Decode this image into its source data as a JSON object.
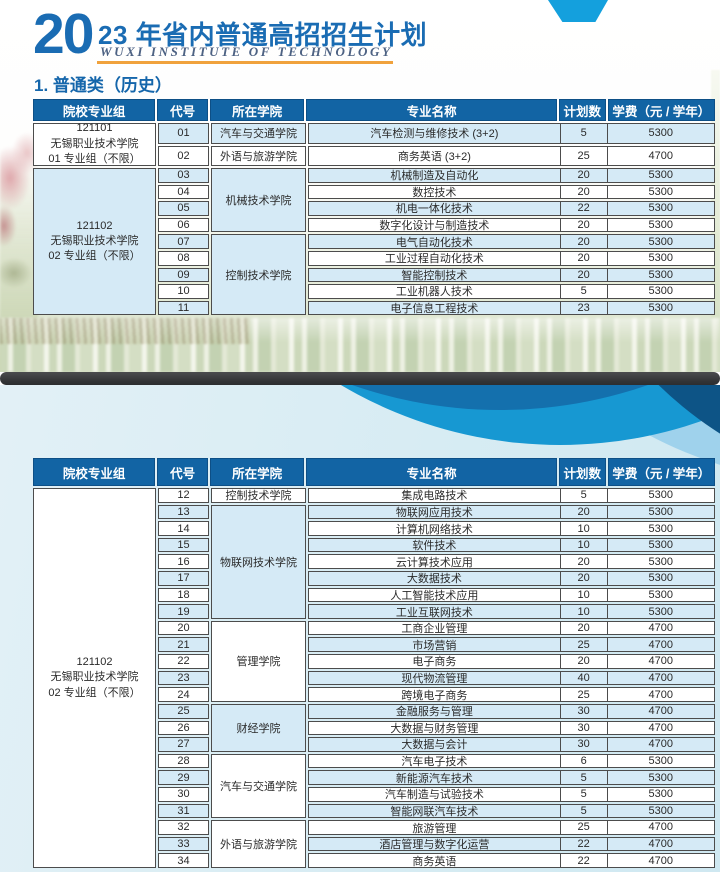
{
  "brand": {
    "year_prefix": "20",
    "title_rest": "23 年省内普通高招招生计划",
    "subtitle": "WUXI  INSTITUTE  OF  TECHNOLOGY"
  },
  "section": {
    "title": "1. 普通类（历史）"
  },
  "colors": {
    "header_blue": "#1264a4",
    "row_blue": "#d5eaf6",
    "title_blue": "#1a6cb3",
    "underline_orange": "#f0a23c",
    "ribbon_blue": "#14a0dd",
    "divider_dark": "#333436",
    "swoosh_bright": "#1798d2",
    "swoosh_navy": "#0d5486"
  },
  "tables": [
    {
      "name": "table1",
      "headers": [
        "院校专业组",
        "代号",
        "所在学院",
        "专业名称",
        "计划数",
        "学费（元 / 学年）"
      ],
      "groups": [
        {
          "lines": [
            "121101",
            "无锡职业技术学院",
            "01 专业组（不限）"
          ],
          "bg": "white"
        },
        {
          "lines": [
            "121102",
            "无锡职业技术学院",
            "02 专业组（不限）"
          ],
          "bg": "blue"
        }
      ],
      "rows": [
        {
          "group": 0,
          "college": "汽车与交通学院",
          "code": "01",
          "major": "汽车检测与维修技术 (3+2)",
          "plan": "5",
          "fee": "5300"
        },
        {
          "group": 0,
          "college": "外语与旅游学院",
          "code": "02",
          "major": "商务英语 (3+2)",
          "plan": "25",
          "fee": "4700"
        },
        {
          "group": 1,
          "college": "机械技术学院",
          "code": "03",
          "major": "机械制造及自动化",
          "plan": "20",
          "fee": "5300"
        },
        {
          "group": 1,
          "college": "机械技术学院",
          "code": "04",
          "major": "数控技术",
          "plan": "20",
          "fee": "5300"
        },
        {
          "group": 1,
          "college": "机械技术学院",
          "code": "05",
          "major": "机电一体化技术",
          "plan": "22",
          "fee": "5300"
        },
        {
          "group": 1,
          "college": "机械技术学院",
          "code": "06",
          "major": "数字化设计与制造技术",
          "plan": "20",
          "fee": "5300"
        },
        {
          "group": 1,
          "college": "控制技术学院",
          "code": "07",
          "major": "电气自动化技术",
          "plan": "20",
          "fee": "5300"
        },
        {
          "group": 1,
          "college": "控制技术学院",
          "code": "08",
          "major": "工业过程自动化技术",
          "plan": "20",
          "fee": "5300"
        },
        {
          "group": 1,
          "college": "控制技术学院",
          "code": "09",
          "major": "智能控制技术",
          "plan": "20",
          "fee": "5300"
        },
        {
          "group": 1,
          "college": "控制技术学院",
          "code": "10",
          "major": "工业机器人技术",
          "plan": "5",
          "fee": "5300"
        },
        {
          "group": 1,
          "college": "控制技术学院",
          "code": "11",
          "major": "电子信息工程技术",
          "plan": "23",
          "fee": "5300"
        }
      ]
    },
    {
      "name": "table2",
      "headers": [
        "院校专业组",
        "代号",
        "所在学院",
        "专业名称",
        "计划数",
        "学费（元 / 学年）"
      ],
      "groups": [
        {
          "lines": [
            "121102",
            "无锡职业技术学院",
            "02 专业组（不限）"
          ],
          "bg": "white"
        }
      ],
      "rows": [
        {
          "group": 0,
          "college": "控制技术学院",
          "code": "12",
          "major": "集成电路技术",
          "plan": "5",
          "fee": "5300"
        },
        {
          "group": 0,
          "college": "物联网技术学院",
          "code": "13",
          "major": "物联网应用技术",
          "plan": "20",
          "fee": "5300"
        },
        {
          "group": 0,
          "college": "物联网技术学院",
          "code": "14",
          "major": "计算机网络技术",
          "plan": "10",
          "fee": "5300"
        },
        {
          "group": 0,
          "college": "物联网技术学院",
          "code": "15",
          "major": "软件技术",
          "plan": "10",
          "fee": "5300"
        },
        {
          "group": 0,
          "college": "物联网技术学院",
          "code": "16",
          "major": "云计算技术应用",
          "plan": "20",
          "fee": "5300"
        },
        {
          "group": 0,
          "college": "物联网技术学院",
          "code": "17",
          "major": "大数据技术",
          "plan": "20",
          "fee": "5300"
        },
        {
          "group": 0,
          "college": "物联网技术学院",
          "code": "18",
          "major": "人工智能技术应用",
          "plan": "10",
          "fee": "5300"
        },
        {
          "group": 0,
          "college": "物联网技术学院",
          "code": "19",
          "major": "工业互联网技术",
          "plan": "10",
          "fee": "5300"
        },
        {
          "group": 0,
          "college": "管理学院",
          "code": "20",
          "major": "工商企业管理",
          "plan": "20",
          "fee": "4700"
        },
        {
          "group": 0,
          "college": "管理学院",
          "code": "21",
          "major": "市场营销",
          "plan": "25",
          "fee": "4700"
        },
        {
          "group": 0,
          "college": "管理学院",
          "code": "22",
          "major": "电子商务",
          "plan": "20",
          "fee": "4700"
        },
        {
          "group": 0,
          "college": "管理学院",
          "code": "23",
          "major": "现代物流管理",
          "plan": "40",
          "fee": "4700"
        },
        {
          "group": 0,
          "college": "管理学院",
          "code": "24",
          "major": "跨境电子商务",
          "plan": "25",
          "fee": "4700"
        },
        {
          "group": 0,
          "college": "财经学院",
          "code": "25",
          "major": "金融服务与管理",
          "plan": "30",
          "fee": "4700"
        },
        {
          "group": 0,
          "college": "财经学院",
          "code": "26",
          "major": "大数据与财务管理",
          "plan": "30",
          "fee": "4700"
        },
        {
          "group": 0,
          "college": "财经学院",
          "code": "27",
          "major": "大数据与会计",
          "plan": "30",
          "fee": "4700"
        },
        {
          "group": 0,
          "college": "汽车与交通学院",
          "code": "28",
          "major": "汽车电子技术",
          "plan": "6",
          "fee": "5300"
        },
        {
          "group": 0,
          "college": "汽车与交通学院",
          "code": "29",
          "major": "新能源汽车技术",
          "plan": "5",
          "fee": "5300"
        },
        {
          "group": 0,
          "college": "汽车与交通学院",
          "code": "30",
          "major": "汽车制造与试验技术",
          "plan": "5",
          "fee": "5300"
        },
        {
          "group": 0,
          "college": "汽车与交通学院",
          "code": "31",
          "major": "智能网联汽车技术",
          "plan": "5",
          "fee": "5300"
        },
        {
          "group": 0,
          "college": "外语与旅游学院",
          "code": "32",
          "major": "旅游管理",
          "plan": "25",
          "fee": "4700"
        },
        {
          "group": 0,
          "college": "外语与旅游学院",
          "code": "33",
          "major": "酒店管理与数字化运营",
          "plan": "22",
          "fee": "4700"
        },
        {
          "group": 0,
          "college": "外语与旅游学院",
          "code": "34",
          "major": "商务英语",
          "plan": "22",
          "fee": "4700"
        }
      ]
    }
  ]
}
